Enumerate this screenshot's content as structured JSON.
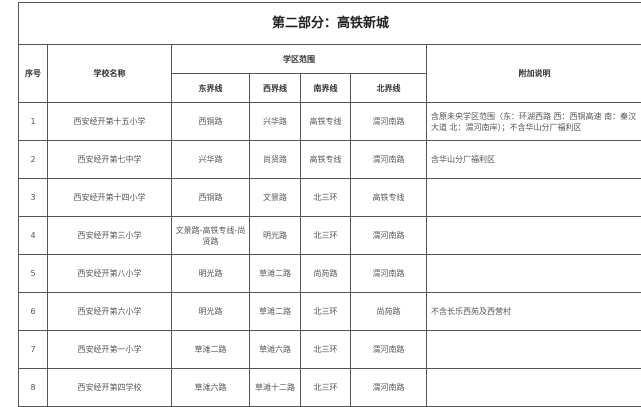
{
  "title": "第二部分：高铁新城",
  "headers": {
    "no": "序号",
    "school": "学校名称",
    "range": "学区范围",
    "east": "东界线",
    "west": "西界线",
    "south": "南界线",
    "north": "北界线",
    "note": "附加说明"
  },
  "rows": [
    {
      "no": "1",
      "school": "西安经开第十五小学",
      "east": "西铜路",
      "west": "兴华路",
      "south": "高铁专线",
      "north": "渭河南路",
      "note": "含原未央学区范围（东：环湖西路 西：西铜高速 南：秦汉大道 北：渭河南岸）；不含华山分厂福利区"
    },
    {
      "no": "2",
      "school": "西安经开第七中学",
      "east": "兴华路",
      "west": "尚贤路",
      "south": "高铁专线",
      "north": "渭河南路",
      "note": "含华山分厂福利区"
    },
    {
      "no": "3",
      "school": "西安经开第十四小学",
      "east": "西铜路",
      "west": "文景路",
      "south": "北三环",
      "north": "高铁专线",
      "note": ""
    },
    {
      "no": "4",
      "school": "西安经开第三小学",
      "east": "文景路-高铁专线-尚贤路",
      "west": "明光路",
      "south": "北三环",
      "north": "渭河南路",
      "note": ""
    },
    {
      "no": "5",
      "school": "西安经开第八小学",
      "east": "明光路",
      "west": "草滩二路",
      "south": "尚苑路",
      "north": "渭河南路",
      "note": ""
    },
    {
      "no": "6",
      "school": "西安经开第六小学",
      "east": "明光路",
      "west": "草滩二路",
      "south": "北三环",
      "north": "尚苑路",
      "note": "不含长乐西苑及西营村"
    },
    {
      "no": "7",
      "school": "西安经开第一小学",
      "east": "草滩二路",
      "west": "草滩六路",
      "south": "北三环",
      "north": "渭河南路",
      "note": ""
    },
    {
      "no": "8",
      "school": "西安经开第四学校",
      "east": "草滩六路",
      "west": "草滩十二路",
      "south": "北三环",
      "north": "渭河南路",
      "note": ""
    }
  ]
}
